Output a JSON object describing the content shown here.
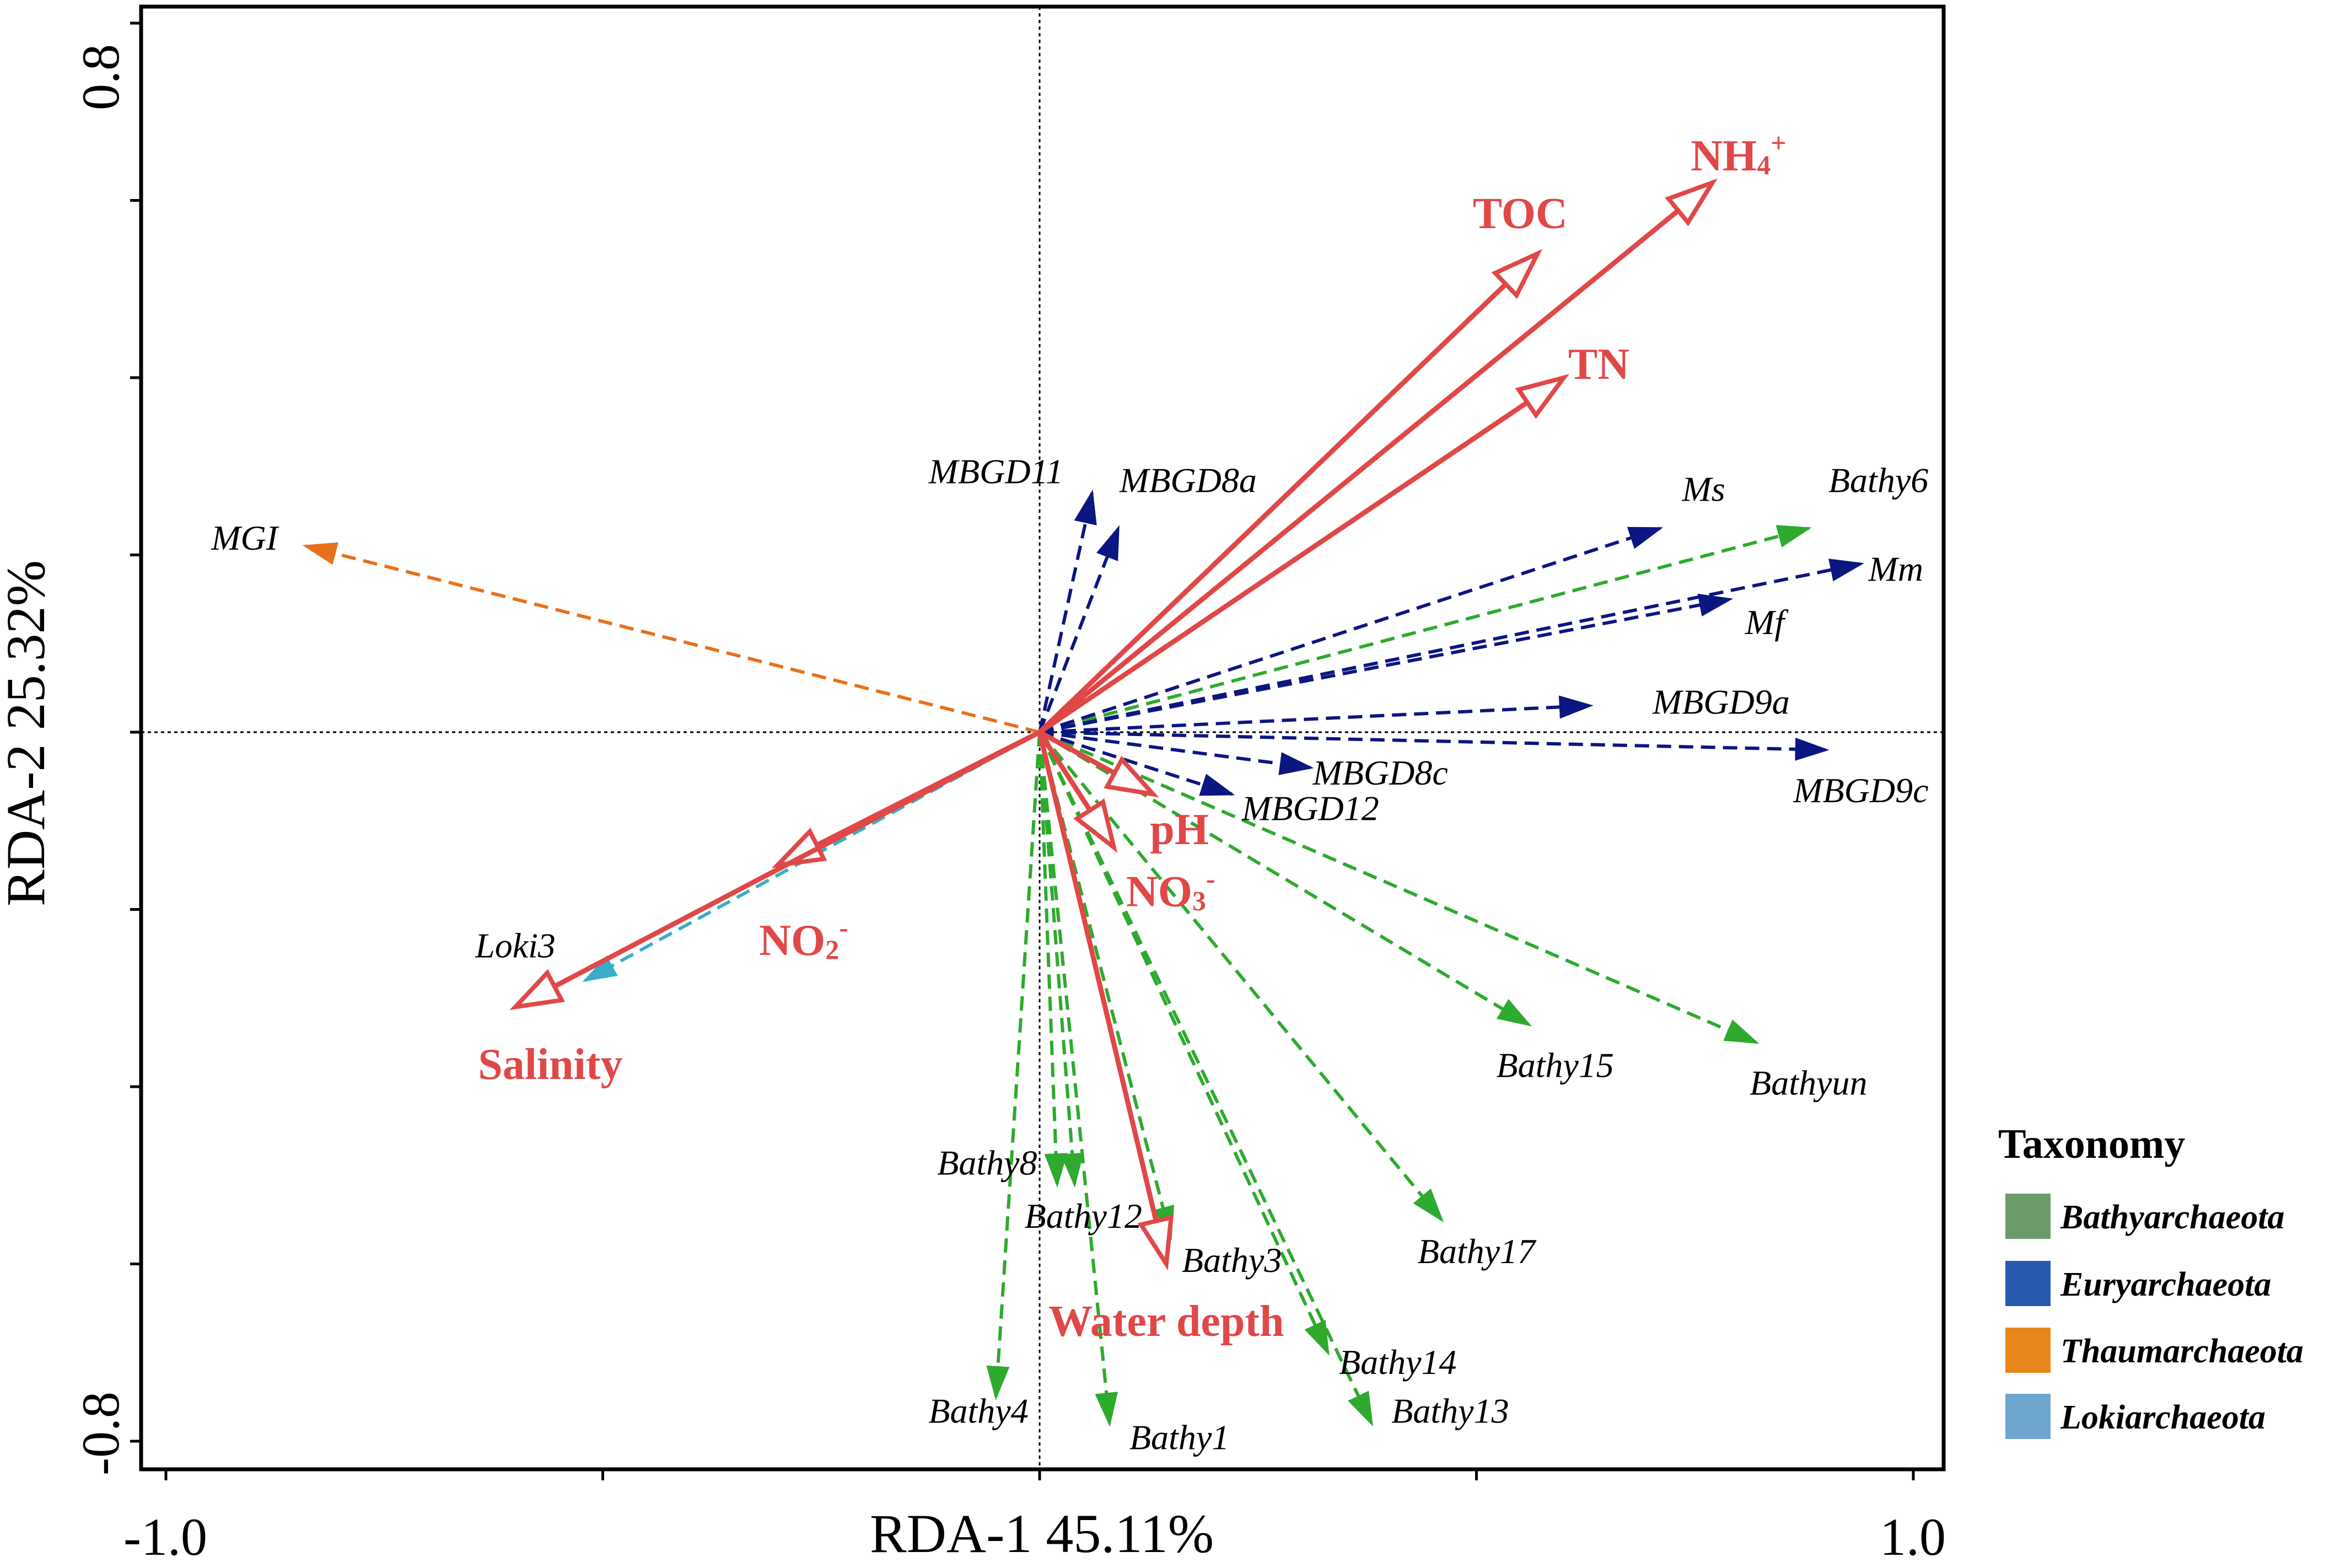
{
  "chart_data": {
    "type": "scatter",
    "subtype": "rda-biplot",
    "xlabel": "RDA-1 45.11%",
    "ylabel": "RDA-2 25.32%",
    "xlim": [
      -1.0,
      1.0
    ],
    "ylim": [
      -0.8,
      0.8
    ],
    "x_tick_labels": [
      "-1.0",
      "1.0"
    ],
    "y_tick_labels": [
      "0.8",
      "-0.8"
    ],
    "env_color": "#e04848",
    "env_vectors": [
      {
        "name": "NH4+",
        "label": "NH",
        "sub": "4",
        "sup": "+",
        "x": 0.77,
        "y": 0.62,
        "lx": 0.8,
        "ly": 0.645
      },
      {
        "name": "TOC",
        "label": "TOC",
        "sub": "",
        "sup": "",
        "x": 0.57,
        "y": 0.54,
        "lx": 0.55,
        "ly": 0.58
      },
      {
        "name": "TN",
        "label": "TN",
        "sub": "",
        "sup": "",
        "x": 0.6,
        "y": 0.4,
        "lx": 0.64,
        "ly": 0.41
      },
      {
        "name": "pH",
        "label": "pH",
        "sub": "",
        "sup": "",
        "x": 0.13,
        "y": -0.07,
        "lx": 0.16,
        "ly": -0.115
      },
      {
        "name": "NO3-",
        "label": "NO",
        "sub": "3",
        "sup": "-",
        "x": 0.085,
        "y": -0.13,
        "lx": 0.15,
        "ly": -0.185
      },
      {
        "name": "NO2-",
        "label": "NO",
        "sub": "2",
        "sup": "-",
        "x": -0.3,
        "y": -0.15,
        "lx": -0.27,
        "ly": -0.24
      },
      {
        "name": "Salinity",
        "label": "Salinity",
        "sub": "",
        "sup": "",
        "x": -0.6,
        "y": -0.31,
        "lx": -0.56,
        "ly": -0.38
      },
      {
        "name": "Water depth",
        "label": "Water depth",
        "sub": "",
        "sup": "",
        "x": 0.145,
        "y": -0.6,
        "lx": 0.145,
        "ly": -0.67
      }
    ],
    "legend": {
      "title": "Taxonomy",
      "entries": [
        {
          "label": "Bathyarchaeota",
          "color": "#6b9a6b"
        },
        {
          "label": "Euryarchaeota",
          "color": "#2858b0"
        },
        {
          "label": "Thaumarchaeota",
          "color": "#e8861c"
        },
        {
          "label": "Lokiarchaeota",
          "color": "#6ea5cc"
        }
      ]
    },
    "series": [
      {
        "name": "Bathyarchaeota",
        "color": "#2eaa2e",
        "points": [
          {
            "label": "Bathy6",
            "x": 0.88,
            "y": 0.23,
            "lx": 0.96,
            "ly": 0.28
          },
          {
            "label": "Bathy15",
            "x": 0.56,
            "y": -0.33,
            "lx": 0.59,
            "ly": -0.38
          },
          {
            "label": "Bathyun",
            "x": 0.82,
            "y": -0.35,
            "lx": 0.88,
            "ly": -0.4
          },
          {
            "label": "Bathy17",
            "x": 0.46,
            "y": -0.55,
            "lx": 0.5,
            "ly": -0.59
          },
          {
            "label": "Bathy8",
            "x": 0.02,
            "y": -0.51,
            "lx": -0.06,
            "ly": -0.49
          },
          {
            "label": "Bathy12",
            "x": 0.04,
            "y": -0.51,
            "lx": 0.05,
            "ly": -0.55
          },
          {
            "label": "Bathy3",
            "x": 0.15,
            "y": -0.57,
            "lx": 0.22,
            "ly": -0.6
          },
          {
            "label": "Bathy14",
            "x": 0.33,
            "y": -0.7,
            "lx": 0.41,
            "ly": -0.715
          },
          {
            "label": "Bathy13",
            "x": 0.38,
            "y": -0.78,
            "lx": 0.47,
            "ly": -0.77
          },
          {
            "label": "Bathy4",
            "x": -0.05,
            "y": -0.75,
            "lx": -0.07,
            "ly": -0.77
          },
          {
            "label": "Bathy1",
            "x": 0.08,
            "y": -0.78,
            "lx": 0.16,
            "ly": -0.8
          }
        ]
      },
      {
        "name": "Euryarchaeota",
        "color": "#0c1680",
        "points": [
          {
            "label": "MBGD11",
            "x": 0.06,
            "y": 0.27,
            "lx": -0.05,
            "ly": 0.29
          },
          {
            "label": "MBGD8a",
            "x": 0.09,
            "y": 0.23,
            "lx": 0.17,
            "ly": 0.28
          },
          {
            "label": "Ms",
            "x": 0.71,
            "y": 0.23,
            "lx": 0.76,
            "ly": 0.27
          },
          {
            "label": "Mm",
            "x": 0.94,
            "y": 0.19,
            "lx": 0.98,
            "ly": 0.18
          },
          {
            "label": "Mf",
            "x": 0.79,
            "y": 0.15,
            "lx": 0.83,
            "ly": 0.12
          },
          {
            "label": "MBGD9a",
            "x": 0.63,
            "y": 0.03,
            "lx": 0.78,
            "ly": 0.03
          },
          {
            "label": "MBGD9c",
            "x": 0.9,
            "y": -0.02,
            "lx": 0.94,
            "ly": -0.07
          },
          {
            "label": "MBGD8c",
            "x": 0.31,
            "y": -0.04,
            "lx": 0.39,
            "ly": -0.05
          },
          {
            "label": "MBGD12",
            "x": 0.22,
            "y": -0.07,
            "lx": 0.31,
            "ly": -0.09
          }
        ]
      },
      {
        "name": "Thaumarchaeota",
        "color": "#e8701a",
        "points": [
          {
            "label": "MGI",
            "x": -0.84,
            "y": 0.21,
            "lx": -0.91,
            "ly": 0.215
          }
        ]
      },
      {
        "name": "Lokiarchaeota",
        "color": "#3aaec8",
        "points": [
          {
            "label": "Loki3",
            "x": -0.52,
            "y": -0.28,
            "lx": -0.6,
            "ly": -0.245
          }
        ]
      }
    ]
  }
}
